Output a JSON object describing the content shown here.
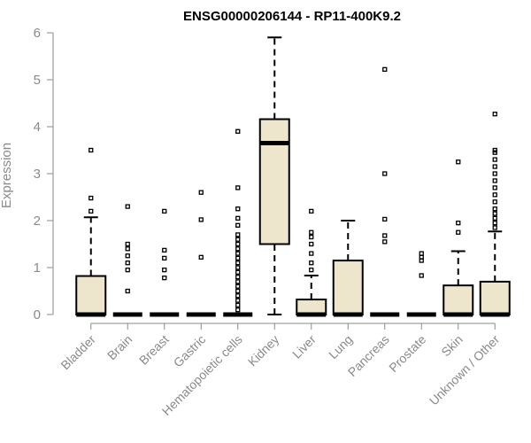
{
  "chart_data": {
    "type": "box",
    "title": "ENSG00000206144 - RP11-400K9.2",
    "xlabel": "",
    "ylabel": "Expression",
    "ylim": [
      0,
      6
    ],
    "yticks": [
      "0",
      "1",
      "2",
      "3",
      "4",
      "5",
      "6"
    ],
    "categories": [
      "Bladder",
      "Brain",
      "Breast",
      "Gastric",
      "Hematopoietic cells",
      "Kidney",
      "Liver",
      "Lung",
      "Pancreas",
      "Prostate",
      "Skin",
      "Unknown / Other"
    ],
    "boxes": [
      {
        "category": "Bladder",
        "q1": 0,
        "median": 0,
        "q3": 0.82,
        "whisker_low": 0,
        "whisker_high": 2.07,
        "outliers": [
          2.2,
          2.48,
          3.5
        ]
      },
      {
        "category": "Brain",
        "q1": 0,
        "median": 0,
        "q3": 0,
        "whisker_low": 0,
        "whisker_high": 0,
        "outliers": [
          0.5,
          0.95,
          1.1,
          1.25,
          1.4,
          1.5,
          2.3
        ]
      },
      {
        "category": "Breast",
        "q1": 0,
        "median": 0,
        "q3": 0,
        "whisker_low": 0,
        "whisker_high": 0,
        "outliers": [
          0.78,
          0.95,
          1.2,
          1.37,
          2.2
        ]
      },
      {
        "category": "Gastric",
        "q1": 0,
        "median": 0,
        "q3": 0,
        "whisker_low": 0,
        "whisker_high": 0,
        "outliers": [
          1.22,
          2.02,
          2.6
        ]
      },
      {
        "category": "Hematopoietic cells",
        "q1": 0,
        "median": 0,
        "q3": 0,
        "whisker_low": 0,
        "whisker_high": 0,
        "outliers": [
          0.1,
          0.2,
          0.3,
          0.4,
          0.5,
          0.6,
          0.7,
          0.8,
          0.9,
          1.0,
          1.1,
          1.2,
          1.3,
          1.4,
          1.5,
          1.6,
          1.7,
          1.9,
          2.05,
          2.25,
          2.7,
          3.9
        ]
      },
      {
        "category": "Kidney",
        "q1": 1.5,
        "median": 3.65,
        "q3": 4.16,
        "whisker_low": 0,
        "whisker_high": 5.9,
        "outliers": []
      },
      {
        "category": "Liver",
        "q1": 0,
        "median": 0,
        "q3": 0.32,
        "whisker_low": 0,
        "whisker_high": 0.83,
        "outliers": [
          0.95,
          1.1,
          1.3,
          1.5,
          1.65,
          1.75,
          2.2
        ]
      },
      {
        "category": "Lung",
        "q1": 0,
        "median": 0,
        "q3": 1.15,
        "whisker_low": 0,
        "whisker_high": 2.0,
        "outliers": []
      },
      {
        "category": "Pancreas",
        "q1": 0,
        "median": 0,
        "q3": 0,
        "whisker_low": 0,
        "whisker_high": 0,
        "outliers": [
          1.55,
          1.68,
          2.03,
          3.0,
          5.22
        ]
      },
      {
        "category": "Prostate",
        "q1": 0,
        "median": 0,
        "q3": 0,
        "whisker_low": 0,
        "whisker_high": 0,
        "outliers": [
          0.83,
          1.15,
          1.22,
          1.3
        ]
      },
      {
        "category": "Skin",
        "q1": 0,
        "median": 0,
        "q3": 0.62,
        "whisker_low": 0,
        "whisker_high": 1.35,
        "outliers": [
          1.75,
          1.95,
          3.25
        ]
      },
      {
        "category": "Unknown / Other",
        "q1": 0,
        "median": 0,
        "q3": 0.7,
        "whisker_low": 0,
        "whisker_high": 1.77,
        "outliers": [
          1.85,
          1.95,
          2.05,
          2.15,
          2.25,
          2.4,
          2.55,
          2.7,
          2.85,
          3.0,
          3.15,
          3.3,
          3.45,
          3.5,
          4.27
        ]
      }
    ],
    "colors": {
      "box_fill": "#ede6cc",
      "axis": "#8a8a8a",
      "stroke": "#000000"
    }
  }
}
